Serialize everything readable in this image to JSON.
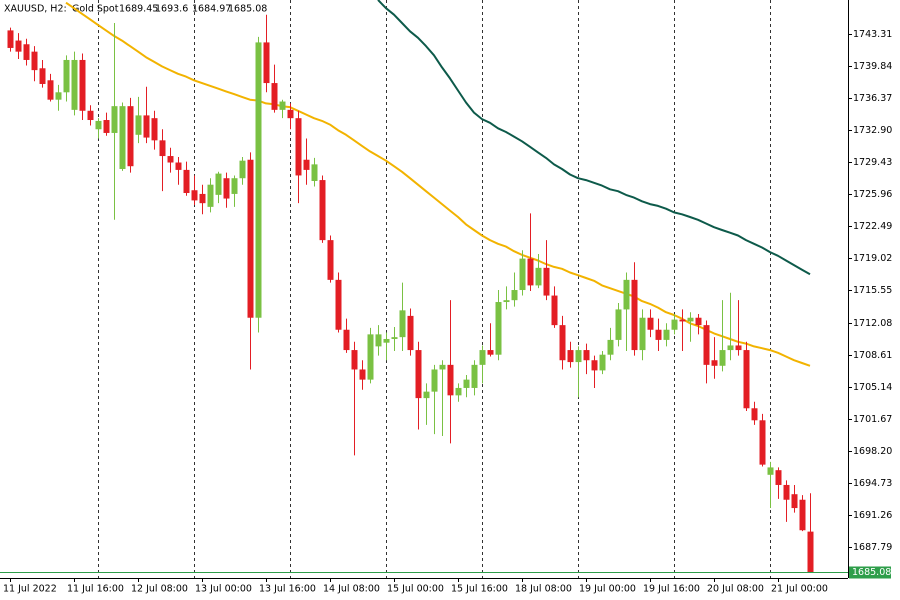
{
  "chart_data": {
    "type": "candlestick",
    "title": "XAUUSD, H2:",
    "subtitle": "Gold Spot",
    "categories": [
      "11 Jul 2022",
      null,
      null,
      null,
      null,
      null,
      null,
      null,
      "11 Jul 16:00",
      null,
      null,
      null,
      null,
      null,
      null,
      null,
      "12 Jul 08:00",
      null,
      null,
      null,
      null,
      null,
      null,
      null,
      "13 Jul 00:00",
      null,
      null,
      null,
      null,
      null,
      null,
      null,
      "13 Jul 16:00",
      null,
      null,
      null,
      null,
      null,
      null,
      null,
      "14 Jul 08:00",
      null,
      null,
      null,
      null,
      null,
      null,
      null,
      "15 Jul 00:00",
      null,
      null,
      null,
      null,
      null,
      null,
      null,
      "15 Jul 16:00",
      null,
      null,
      null,
      null,
      null,
      null,
      null,
      "18 Jul 08:00",
      null,
      null,
      null,
      null,
      null,
      null,
      null,
      "19 Jul 00:00",
      null,
      null,
      null,
      null,
      null,
      null,
      null,
      "19 Jul 16:00",
      null,
      null,
      null,
      null,
      null,
      null,
      null,
      "20 Jul 08:00",
      null,
      null,
      null,
      null,
      null,
      null,
      null,
      "21 Jul 00:00",
      null,
      null,
      null,
      null
    ],
    "open": [
      1743.7,
      1742.6,
      1742.2,
      1741.4,
      1739.6,
      1738.3,
      1736.2,
      1737.0,
      1735.1,
      1740.5,
      1735.0,
      1733.0,
      1734.0,
      1732.6,
      1728.7,
      1735.5,
      1732.4,
      1734.5,
      1734.2,
      1731.8,
      1730.1,
      1729.4,
      1728.6,
      1726.4,
      1726.0,
      1724.6,
      1725.9,
      1727.7,
      1726.0,
      1727.7,
      1729.7,
      1712.6,
      1742.4,
      1738.0,
      1735.1,
      1735.1,
      1734.2,
      1729.7,
      1727.4,
      1727.5,
      1721.0,
      1716.7,
      1711.3,
      1709.1,
      1707.0,
      1705.9,
      1709.5,
      1709.9,
      1710.3,
      1710.5,
      1712.8,
      1709.1,
      1703.9,
      1704.6,
      1707.0,
      1707.5,
      1704.2,
      1705.0,
      1705.0,
      1707.5,
      1709.1,
      1708.6,
      1714.3,
      1714.5,
      1715.6,
      1719.0,
      1716.1,
      1718.0,
      1715.0,
      1711.8,
      1709.1,
      1707.8,
      1709.1,
      1708.0,
      1706.9,
      1708.6,
      1710.2,
      1713.5,
      1716.7,
      1709.1,
      1712.6,
      1711.3,
      1710.2,
      1711.3,
      1712.4,
      1712.2,
      1712.6,
      1711.8,
      1708.0,
      1707.4,
      1709.1,
      1709.6,
      1709.1,
      1702.8,
      1701.5,
      1695.6,
      1696.1,
      1694.5,
      1693.5,
      1692.9,
      1689.45
    ],
    "high": [
      1744.0,
      1743.4,
      1742.8,
      1742.0,
      1740.5,
      1739.0,
      1737.8,
      1741.0,
      1741.4,
      1741.2,
      1735.6,
      1734.2,
      1734.8,
      1744.5,
      1735.9,
      1736.4,
      1736.5,
      1737.6,
      1735.0,
      1733.0,
      1731.0,
      1730.0,
      1729.5,
      1728.0,
      1727.0,
      1727.7,
      1728.4,
      1728.3,
      1728.0,
      1730.0,
      1730.5,
      1743.0,
      1745.4,
      1740.0,
      1736.2,
      1735.8,
      1735.0,
      1732.0,
      1729.9,
      1728.0,
      1721.5,
      1717.5,
      1712.5,
      1710.0,
      1708.0,
      1711.5,
      1711.8,
      1711.0,
      1711.6,
      1716.4,
      1713.6,
      1710.0,
      1705.5,
      1707.5,
      1708.0,
      1714.5,
      1705.5,
      1706.4,
      1708.0,
      1709.6,
      1712.0,
      1715.6,
      1716.0,
      1717.5,
      1719.9,
      1723.9,
      1719.5,
      1721.0,
      1716.0,
      1712.8,
      1710.0,
      1709.5,
      1709.8,
      1708.5,
      1709.0,
      1711.5,
      1714.2,
      1717.5,
      1718.6,
      1713.5,
      1713.5,
      1712.5,
      1712.0,
      1713.0,
      1713.5,
      1713.2,
      1713.0,
      1712.3,
      1710.5,
      1714.5,
      1715.3,
      1714.5,
      1710.0,
      1703.5,
      1702.2,
      1697.0,
      1696.4,
      1695.0,
      1694.5,
      1693.4,
      1693.6
    ],
    "low": [
      1741.4,
      1740.6,
      1739.9,
      1738.2,
      1737.5,
      1736.0,
      1735.0,
      1736.0,
      1734.5,
      1734.0,
      1733.4,
      1732.0,
      1732.3,
      1723.2,
      1728.5,
      1728.3,
      1731.5,
      1731.5,
      1730.8,
      1726.3,
      1728.3,
      1727.0,
      1725.8,
      1724.8,
      1723.8,
      1724.0,
      1725.0,
      1724.5,
      1724.6,
      1727.0,
      1707.0,
      1711.0,
      1737.0,
      1734.8,
      1734.2,
      1733.0,
      1725.0,
      1727.0,
      1726.8,
      1720.7,
      1716.4,
      1711.0,
      1708.8,
      1697.7,
      1704.8,
      1705.5,
      1708.5,
      1708.0,
      1709.0,
      1709.0,
      1708.5,
      1700.5,
      1701.0,
      1700.0,
      1699.8,
      1699.0,
      1703.5,
      1704.0,
      1704.2,
      1705.5,
      1708.4,
      1708.0,
      1713.5,
      1713.8,
      1715.0,
      1715.5,
      1715.8,
      1714.5,
      1711.5,
      1707.0,
      1707.2,
      1704.0,
      1706.5,
      1705.0,
      1706.5,
      1708.0,
      1709.5,
      1709.0,
      1708.5,
      1708.0,
      1710.5,
      1709.0,
      1709.5,
      1710.8,
      1709.0,
      1710.0,
      1710.8,
      1705.5,
      1706.0,
      1706.8,
      1708.0,
      1708.5,
      1702.5,
      1701.0,
      1696.5,
      1692.0,
      1693.0,
      1690.5,
      1691.5,
      1689.5,
      1684.97
    ],
    "close": [
      1741.8,
      1741.4,
      1740.5,
      1739.4,
      1737.9,
      1736.2,
      1737.0,
      1740.5,
      1740.5,
      1735.0,
      1734.0,
      1733.9,
      1732.6,
      1735.5,
      1735.5,
      1729.0,
      1734.5,
      1732.1,
      1731.8,
      1730.1,
      1729.4,
      1728.6,
      1726.1,
      1725.3,
      1725.0,
      1727.0,
      1728.2,
      1725.5,
      1727.7,
      1729.6,
      1712.6,
      1742.4,
      1738.0,
      1735.1,
      1736.0,
      1734.2,
      1728.0,
      1728.6,
      1729.2,
      1721.0,
      1716.7,
      1711.3,
      1709.1,
      1707.0,
      1705.9,
      1710.8,
      1710.8,
      1710.3,
      1710.5,
      1713.4,
      1709.1,
      1703.9,
      1704.6,
      1707.0,
      1707.5,
      1704.2,
      1705.0,
      1705.9,
      1707.5,
      1709.1,
      1708.6,
      1714.3,
      1714.5,
      1715.6,
      1719.0,
      1716.1,
      1718.0,
      1715.0,
      1711.8,
      1708.0,
      1707.8,
      1709.1,
      1708.0,
      1706.9,
      1708.6,
      1710.2,
      1713.5,
      1716.7,
      1709.1,
      1712.6,
      1711.3,
      1710.2,
      1711.3,
      1712.4,
      1712.2,
      1712.6,
      1711.8,
      1707.5,
      1707.4,
      1709.1,
      1709.6,
      1709.1,
      1702.8,
      1701.5,
      1696.7,
      1696.4,
      1694.5,
      1692.9,
      1692.0,
      1689.6,
      1685.08
    ],
    "up_color": "#7ac143",
    "down_color": "#e31e24",
    "series": [
      {
        "color": "#f2b300",
        "values": [
          null,
          null,
          null,
          null,
          null,
          null,
          null,
          1746.7,
          1746.1,
          1745.5,
          1744.9,
          1744.3,
          1743.7,
          1743.1,
          1742.6,
          1742.0,
          1741.4,
          1740.8,
          1740.3,
          1739.8,
          1739.4,
          1739.0,
          1738.7,
          1738.3,
          1738.0,
          1737.7,
          1737.4,
          1737.1,
          1736.8,
          1736.5,
          1736.2,
          1736.1,
          1735.8,
          1735.7,
          1735.5,
          1735.4,
          1735.0,
          1734.6,
          1734.2,
          1733.9,
          1733.5,
          1732.9,
          1732.4,
          1731.8,
          1731.2,
          1730.6,
          1730.1,
          1729.6,
          1729.0,
          1728.4,
          1727.7,
          1727.0,
          1726.3,
          1725.6,
          1724.9,
          1724.2,
          1723.5,
          1722.7,
          1722.1,
          1721.5,
          1721.0,
          1720.6,
          1720.3,
          1719.8,
          1719.4,
          1719.1,
          1718.8,
          1718.4,
          1718.1,
          1717.9,
          1717.5,
          1717.2,
          1716.9,
          1716.6,
          1716.1,
          1715.8,
          1715.5,
          1715.2,
          1714.9,
          1714.4,
          1714.1,
          1713.7,
          1713.2,
          1712.9,
          1712.5,
          1712.0,
          1711.7,
          1711.3,
          1710.9,
          1710.6,
          1710.3,
          1710.0,
          1709.8,
          1709.5,
          1709.3,
          1709.1,
          1708.8,
          1708.4,
          1708.0,
          1707.7,
          1707.4
        ]
      },
      {
        "color": "#0d5a4a",
        "values": [
          null,
          null,
          null,
          null,
          null,
          null,
          null,
          null,
          null,
          null,
          null,
          null,
          null,
          null,
          null,
          null,
          null,
          null,
          null,
          null,
          null,
          null,
          null,
          null,
          null,
          null,
          null,
          null,
          null,
          null,
          null,
          null,
          null,
          null,
          null,
          null,
          null,
          null,
          null,
          null,
          null,
          null,
          null,
          null,
          null,
          null,
          1747.0,
          1746.1,
          1745.4,
          1744.5,
          1743.6,
          1742.9,
          1742.0,
          1741.0,
          1739.7,
          1738.5,
          1737.2,
          1735.9,
          1734.8,
          1734.1,
          1733.7,
          1733.1,
          1732.7,
          1732.2,
          1731.7,
          1731.1,
          1730.5,
          1729.9,
          1729.2,
          1728.7,
          1728.1,
          1727.7,
          1727.5,
          1727.2,
          1726.9,
          1726.5,
          1726.3,
          1725.9,
          1725.6,
          1725.2,
          1724.9,
          1724.7,
          1724.4,
          1724.0,
          1723.8,
          1723.5,
          1723.2,
          1722.8,
          1722.4,
          1722.1,
          1721.8,
          1721.5,
          1721.0,
          1720.6,
          1720.2,
          1719.7,
          1719.3,
          1718.8,
          1718.3,
          1717.8,
          1717.3
        ]
      }
    ],
    "ylim": [
      1684.43,
      1746.99
    ],
    "yticks": [
      1743.31,
      1739.84,
      1736.37,
      {
        "value": 1732.9,
        "label": "1732.90"
      },
      1729.43,
      1725.96,
      1722.49,
      1719.02,
      1715.55,
      1712.08,
      1708.61,
      1705.14,
      1701.67,
      {
        "value": 1698.2,
        "label": "1698.20"
      },
      1694.73,
      1691.26,
      1687.79
    ],
    "price_line_color": "#2e9e4a"
  }
}
